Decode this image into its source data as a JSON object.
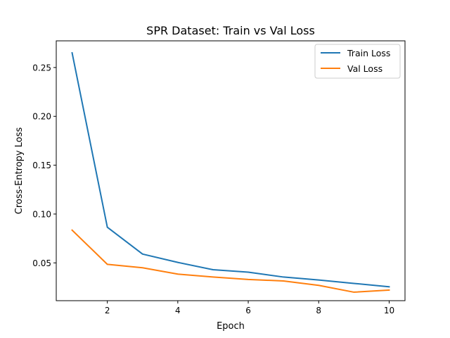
{
  "chart_data": {
    "type": "line",
    "title": "SPR Dataset: Train vs Val Loss",
    "xlabel": "Epoch",
    "ylabel": "Cross-Entropy Loss",
    "xlim": [
      0.55,
      10.45
    ],
    "ylim": [
      0.0113,
      0.2773
    ],
    "xticks": [
      2,
      4,
      6,
      8,
      10
    ],
    "xtick_labels": [
      "2",
      "4",
      "6",
      "8",
      "10"
    ],
    "yticks": [
      0.05,
      0.1,
      0.15,
      0.2,
      0.25
    ],
    "ytick_labels": [
      "0.05",
      "0.10",
      "0.15",
      "0.20",
      "0.25"
    ],
    "grid": false,
    "legend_position": "top-right",
    "x": [
      1,
      2,
      3,
      4,
      5,
      6,
      7,
      8,
      9,
      10
    ],
    "series": [
      {
        "name": "Train Loss",
        "color": "#1f77b4",
        "values": [
          0.265,
          0.0865,
          0.059,
          0.0505,
          0.043,
          0.0405,
          0.0355,
          0.0325,
          0.029,
          0.0255
        ]
      },
      {
        "name": "Val Loss",
        "color": "#ff7f0e",
        "values": [
          0.0835,
          0.0485,
          0.045,
          0.0385,
          0.0355,
          0.033,
          0.0315,
          0.027,
          0.02,
          0.0222
        ]
      }
    ]
  }
}
